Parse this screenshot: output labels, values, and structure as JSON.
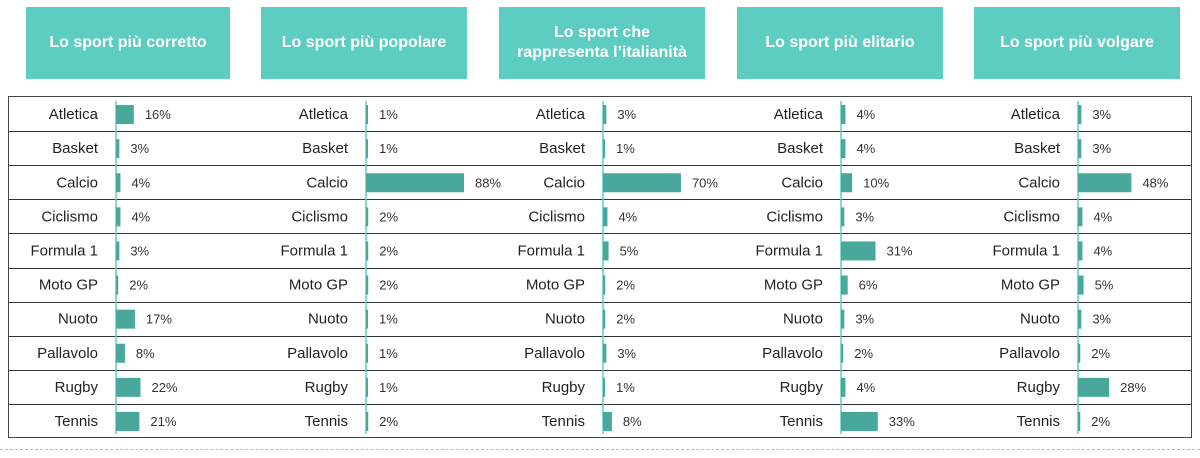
{
  "colors": {
    "header_bg": "#5ecdc1",
    "bar": "#49a89c",
    "axis": "#5ecdc1"
  },
  "chart_data": {
    "type": "bar",
    "categories": [
      "Atletica",
      "Basket",
      "Calcio",
      "Ciclismo",
      "Formula 1",
      "Moto GP",
      "Nuoto",
      "Pallavolo",
      "Rugby",
      "Tennis"
    ],
    "panels": [
      {
        "title": "Lo sport più corretto",
        "values": [
          16,
          3,
          4,
          4,
          3,
          2,
          17,
          8,
          22,
          21
        ]
      },
      {
        "title": "Lo sport più popolare",
        "values": [
          1,
          1,
          88,
          2,
          2,
          2,
          1,
          1,
          1,
          2
        ]
      },
      {
        "title": "Lo sport che rappresenta l’italianità",
        "values": [
          3,
          1,
          70,
          4,
          5,
          2,
          2,
          3,
          1,
          8
        ]
      },
      {
        "title": "Lo sport più elitario",
        "values": [
          4,
          4,
          10,
          3,
          31,
          6,
          3,
          2,
          4,
          33
        ]
      },
      {
        "title": "Lo sport più volgare",
        "values": [
          3,
          3,
          48,
          4,
          4,
          5,
          3,
          2,
          28,
          2
        ]
      }
    ],
    "unit": "%"
  }
}
